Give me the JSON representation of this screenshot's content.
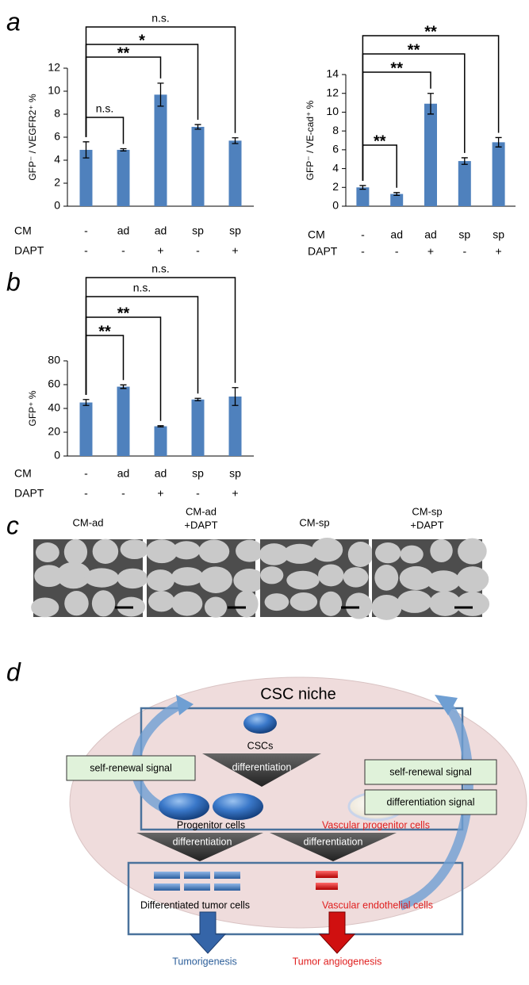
{
  "panel_labels": [
    "a",
    "b",
    "c",
    "d"
  ],
  "chart_data": [
    {
      "type": "bar",
      "ylabel": "GFP⁻ / VEGFR2⁺ %",
      "row_names": [
        "CM",
        "DAPT"
      ],
      "rows": [
        [
          "-",
          "ad",
          "ad",
          "sp",
          "sp"
        ],
        [
          "-",
          "-",
          "+",
          "-",
          "+"
        ]
      ],
      "values": [
        4.9,
        4.9,
        9.7,
        6.9,
        5.7
      ],
      "errors": [
        0.7,
        0.1,
        1.0,
        0.2,
        0.25
      ],
      "color": "#4f81bd",
      "ylim": [
        0,
        12
      ],
      "yticks": [
        0,
        2,
        4,
        6,
        8,
        10,
        12
      ],
      "brackets": [
        {
          "from": 0,
          "to": 1,
          "label": "n.s."
        },
        {
          "from": 0,
          "to": 2,
          "label": "**"
        },
        {
          "from": 0,
          "to": 3,
          "label": "*"
        },
        {
          "from": 0,
          "to": 4,
          "label": "n.s."
        }
      ]
    },
    {
      "type": "bar",
      "ylabel": "GFP⁻ / VE-cad⁺ %",
      "row_names": [
        "CM",
        "DAPT"
      ],
      "rows": [
        [
          "-",
          "ad",
          "ad",
          "sp",
          "sp"
        ],
        [
          "-",
          "-",
          "+",
          "-",
          "+"
        ]
      ],
      "values": [
        2.0,
        1.3,
        10.9,
        4.8,
        6.8
      ],
      "errors": [
        0.2,
        0.15,
        1.1,
        0.35,
        0.5
      ],
      "color": "#4f81bd",
      "ylim": [
        0,
        14
      ],
      "yticks": [
        0,
        2,
        4,
        6,
        8,
        10,
        12,
        14
      ],
      "brackets": [
        {
          "from": 0,
          "to": 1,
          "label": "**"
        },
        {
          "from": 0,
          "to": 2,
          "label": "**"
        },
        {
          "from": 0,
          "to": 3,
          "label": "**"
        },
        {
          "from": 0,
          "to": 4,
          "label": "**"
        }
      ]
    },
    {
      "type": "bar",
      "ylabel": "GFP⁺ %",
      "row_names": [
        "CM",
        "DAPT"
      ],
      "rows": [
        [
          "-",
          "ad",
          "ad",
          "sp",
          "sp"
        ],
        [
          "-",
          "-",
          "+",
          "-",
          "+"
        ]
      ],
      "values": [
        45,
        58.3,
        25,
        47.5,
        50
      ],
      "errors": [
        2.5,
        1.5,
        0.5,
        1,
        7.5
      ],
      "color": "#4f81bd",
      "ylim": [
        0,
        80
      ],
      "yticks": [
        0,
        20,
        40,
        60,
        80
      ],
      "brackets": [
        {
          "from": 0,
          "to": 1,
          "label": "**"
        },
        {
          "from": 0,
          "to": 2,
          "label": "**"
        },
        {
          "from": 0,
          "to": 3,
          "label": "n.s."
        },
        {
          "from": 0,
          "to": 4,
          "label": "n.s."
        }
      ]
    }
  ],
  "micrographs": [
    {
      "lines": [
        "CM-ad"
      ]
    },
    {
      "lines": [
        "CM-ad",
        "+DAPT"
      ]
    },
    {
      "lines": [
        "CM-sp"
      ]
    },
    {
      "lines": [
        "CM-sp",
        "+DAPT"
      ]
    }
  ],
  "diagram": {
    "title": "CSC niche",
    "cscs": "CSCs",
    "diff1": "differentiation",
    "diff2": "differentiation",
    "diff3": "differentiation",
    "signal_left": "self-renewal signal",
    "signal_right1": "self-renewal signal",
    "signal_right2": "differentiation signal",
    "progenitor": "Progenitor cells",
    "vascular_progenitor": "Vascular progenitor cells",
    "differentiated": "Differentiated tumor cells",
    "endothelial": "Vascular endothelial cells",
    "tumorigenesis": "Tumorigenesis",
    "angiogenesis": "Tumor angiogenesis"
  }
}
